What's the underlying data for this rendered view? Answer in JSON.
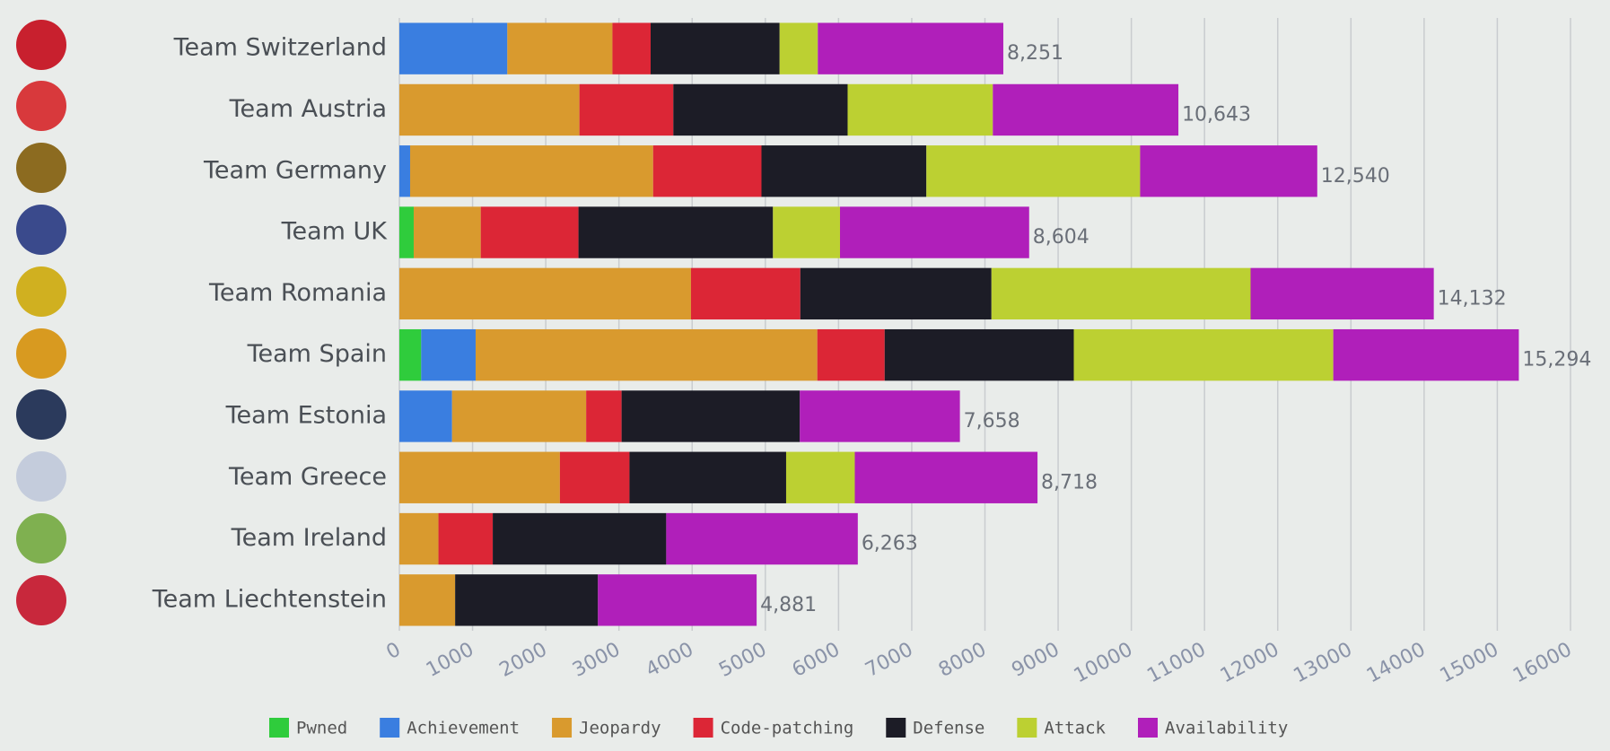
{
  "chart_data": {
    "type": "stacked-bar-horizontal",
    "categories": [
      "Team Switzerland",
      "Team Austria",
      "Team Germany",
      "Team UK",
      "Team Romania",
      "Team Spain",
      "Team Estonia",
      "Team Greece",
      "Team Ireland",
      "Team Liechtenstein"
    ],
    "series": [
      {
        "name": "Pwned",
        "color": "#2fcc3c",
        "values": [
          0,
          0,
          0,
          196,
          0,
          298,
          0,
          0,
          0,
          0
        ]
      },
      {
        "name": "Achievement",
        "color": "#3a7ee0",
        "values": [
          1475,
          0,
          147,
          0,
          0,
          744,
          720,
          0,
          0,
          0
        ]
      },
      {
        "name": "Jeopardy",
        "color": "#d99a2e",
        "values": [
          1436,
          2460,
          3320,
          916,
          3984,
          4668,
          1832,
          2193,
          534,
          762
        ]
      },
      {
        "name": "Code-patching",
        "color": "#dc2636",
        "values": [
          522,
          1283,
          1480,
          1335,
          1494,
          920,
          484,
          951,
          742,
          0
        ]
      },
      {
        "name": "Defense",
        "color": "#1c1c26",
        "values": [
          1762,
          2381,
          2253,
          2657,
          2611,
          2584,
          2435,
          2140,
          2370,
          1951
        ]
      },
      {
        "name": "Attack",
        "color": "#bcd032",
        "values": [
          522,
          1984,
          2920,
          916,
          3540,
          3545,
          0,
          938,
          0,
          0
        ]
      },
      {
        "name": "Availability",
        "color": "#b01fba",
        "values": [
          2534,
          2535,
          2420,
          2584,
          2503,
          2535,
          2187,
          2496,
          2617,
          2168
        ]
      }
    ],
    "totals": [
      8251,
      10643,
      12540,
      8604,
      14132,
      15294,
      7658,
      8718,
      6263,
      4881
    ],
    "total_labels": [
      "8,251",
      "10,643",
      "12,540",
      "8,604",
      "14,132",
      "15,294",
      "7,658",
      "8,718",
      "6,263",
      "4,881"
    ],
    "xlim": [
      0,
      16000
    ],
    "xticks": [
      0,
      1000,
      2000,
      3000,
      4000,
      5000,
      6000,
      7000,
      8000,
      9000,
      10000,
      11000,
      12000,
      13000,
      14000,
      15000,
      16000
    ],
    "grid": true
  }
}
